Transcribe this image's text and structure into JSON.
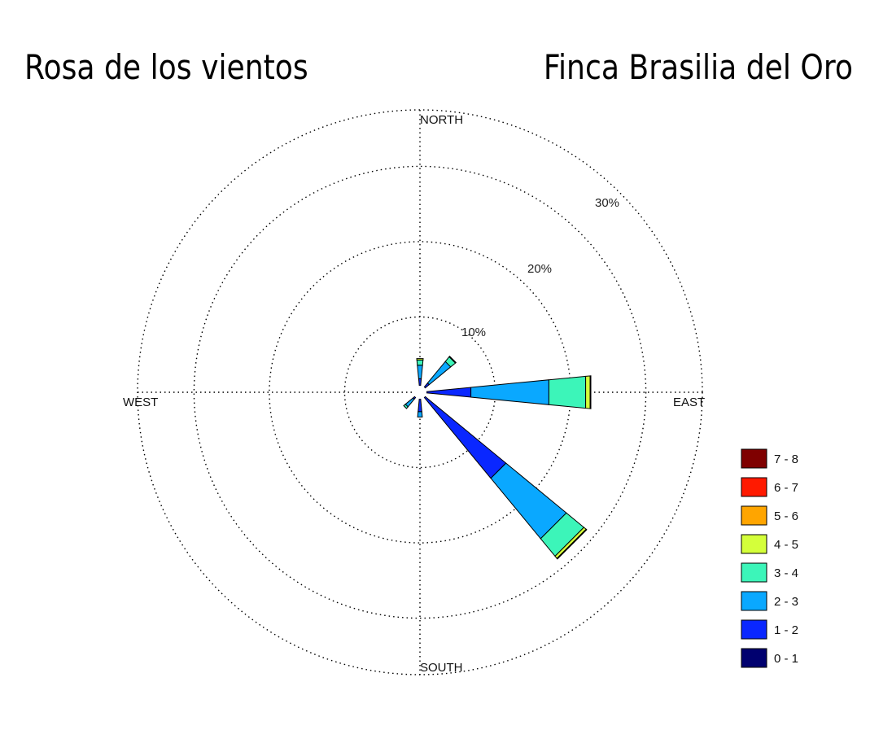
{
  "title_left": "Rosa de los vientos",
  "title_right": "Finca Brasilia del Oro",
  "chart_data": {
    "type": "wind_rose",
    "radial_ticks": [
      {
        "value": 10,
        "label": "10%"
      },
      {
        "value": 20,
        "label": "20%"
      },
      {
        "value": 30,
        "label": "30%"
      }
    ],
    "max_radius_pct": 37.5,
    "directions": {
      "north": "NORTH",
      "east": "EAST",
      "south": "SOUTH",
      "west": "WEST"
    },
    "legend": [
      {
        "label": "7 - 8",
        "color": "#7f0000"
      },
      {
        "label": "6 - 7",
        "color": "#ff1a00"
      },
      {
        "label": "5 - 6",
        "color": "#ffa500"
      },
      {
        "label": "4 - 5",
        "color": "#d4ff3a"
      },
      {
        "label": "3 - 4",
        "color": "#3cf5b9"
      },
      {
        "label": "2 - 3",
        "color": "#0aa8ff"
      },
      {
        "label": "1 - 2",
        "color": "#0a27ff"
      },
      {
        "label": "0 - 1",
        "color": "#00006f"
      }
    ],
    "speed_bins": [
      "0 - 1",
      "1 - 2",
      "2 - 3",
      "3 - 4",
      "4 - 5",
      "5 - 6",
      "6 - 7",
      "7 - 8"
    ],
    "petals": [
      {
        "direction_deg": 0,
        "cumulative_pct": [
          0.6,
          1.8,
          3.6,
          4.3,
          4.5
        ]
      },
      {
        "direction_deg": 45,
        "cumulative_pct": [
          0.6,
          1.6,
          5.3,
          6.1,
          6.2
        ]
      },
      {
        "direction_deg": 90,
        "cumulative_pct": [
          0.6,
          6.8,
          17.2,
          22.1,
          22.7,
          22.8
        ]
      },
      {
        "direction_deg": 135,
        "cumulative_pct": [
          0.6,
          14.8,
          25.2,
          28.2,
          28.6,
          28.7
        ]
      },
      {
        "direction_deg": 180,
        "cumulative_pct": [
          0.6,
          2.6,
          3.3
        ]
      },
      {
        "direction_deg": 225,
        "cumulative_pct": [
          0.6,
          1.2,
          2.5,
          2.8
        ]
      }
    ]
  }
}
